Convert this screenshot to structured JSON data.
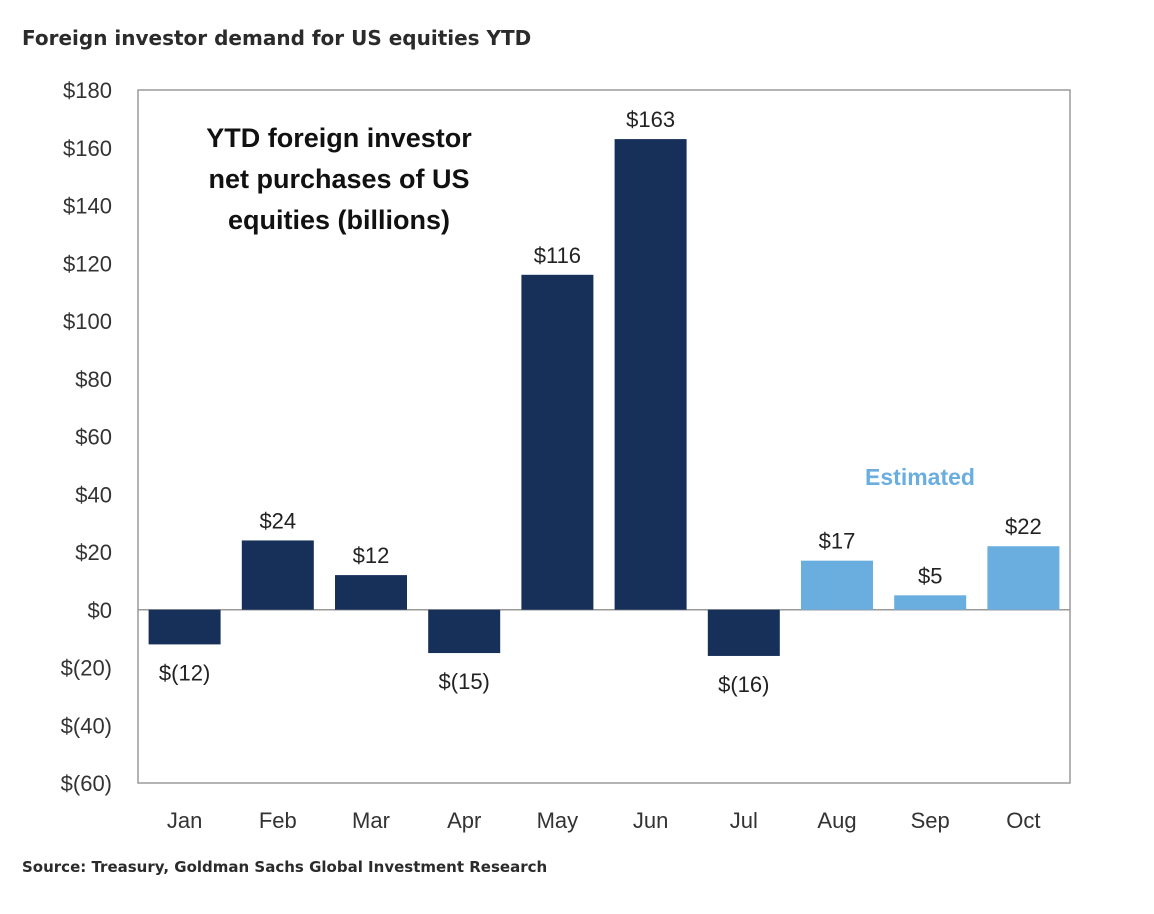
{
  "title": "Foreign investor demand for US equities YTD",
  "source": "Source: Treasury, Goldman Sachs Global Investment Research",
  "chart_data": {
    "type": "bar",
    "categories": [
      "Jan",
      "Feb",
      "Mar",
      "Apr",
      "May",
      "Jun",
      "Jul",
      "Aug",
      "Sep",
      "Oct"
    ],
    "values": [
      -12,
      24,
      12,
      -15,
      116,
      163,
      -16,
      17,
      5,
      22
    ],
    "data_labels": [
      "$(12)",
      "$24",
      "$12",
      "$(15)",
      "$116",
      "$163",
      "$(16)",
      "$17",
      "$5",
      "$22"
    ],
    "estimated": [
      false,
      false,
      false,
      false,
      false,
      false,
      false,
      true,
      true,
      true
    ],
    "annotation_lines": [
      "YTD foreign investor",
      "net purchases of US",
      "equities (billions)"
    ],
    "estimated_label": "Estimated",
    "ylim": [
      -60,
      180
    ],
    "yticks": [
      180,
      160,
      140,
      120,
      100,
      80,
      60,
      40,
      20,
      0,
      -20,
      -40,
      -60
    ],
    "ytick_labels": [
      "$180",
      "$160",
      "$140",
      "$120",
      "$100",
      "$80",
      "$60",
      "$40",
      "$20",
      "$0",
      "$(20)",
      "$(40)",
      "$(60)"
    ],
    "grid": false,
    "colors": {
      "actual": "#17305a",
      "estimated": "#6aaee0",
      "estimated_text": "#6aaee0",
      "axis": "#9a9a9a"
    }
  }
}
